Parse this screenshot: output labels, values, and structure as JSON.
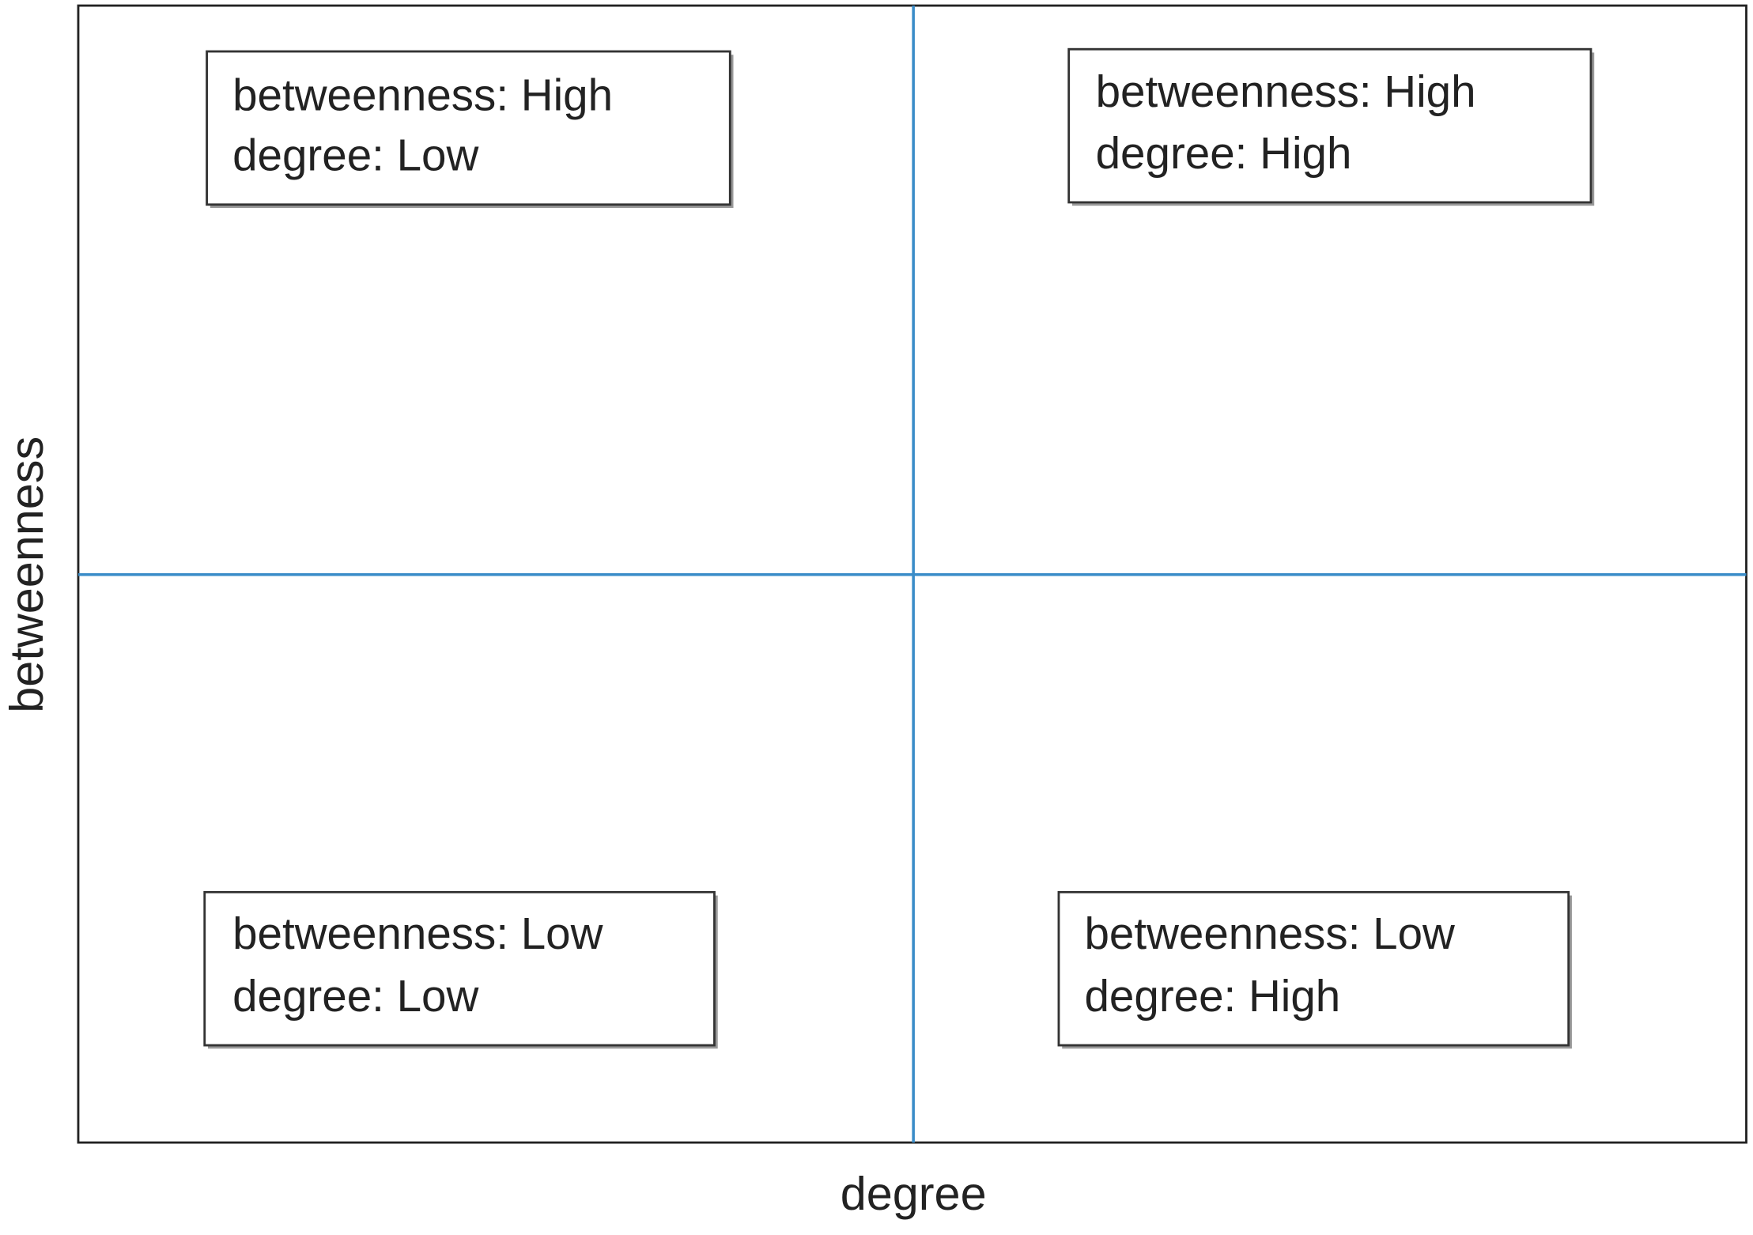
{
  "axes": {
    "x_label": "degree",
    "y_label": "betweenness"
  },
  "quadrants": [
    {
      "lines": [
        "betweenness: High",
        "degree: Low"
      ]
    },
    {
      "lines": [
        "betweenness: High",
        "degree: High"
      ]
    },
    {
      "lines": [
        "betweenness: Low",
        "degree: Low"
      ]
    },
    {
      "lines": [
        "betweenness: Low",
        "degree: High"
      ]
    }
  ]
}
